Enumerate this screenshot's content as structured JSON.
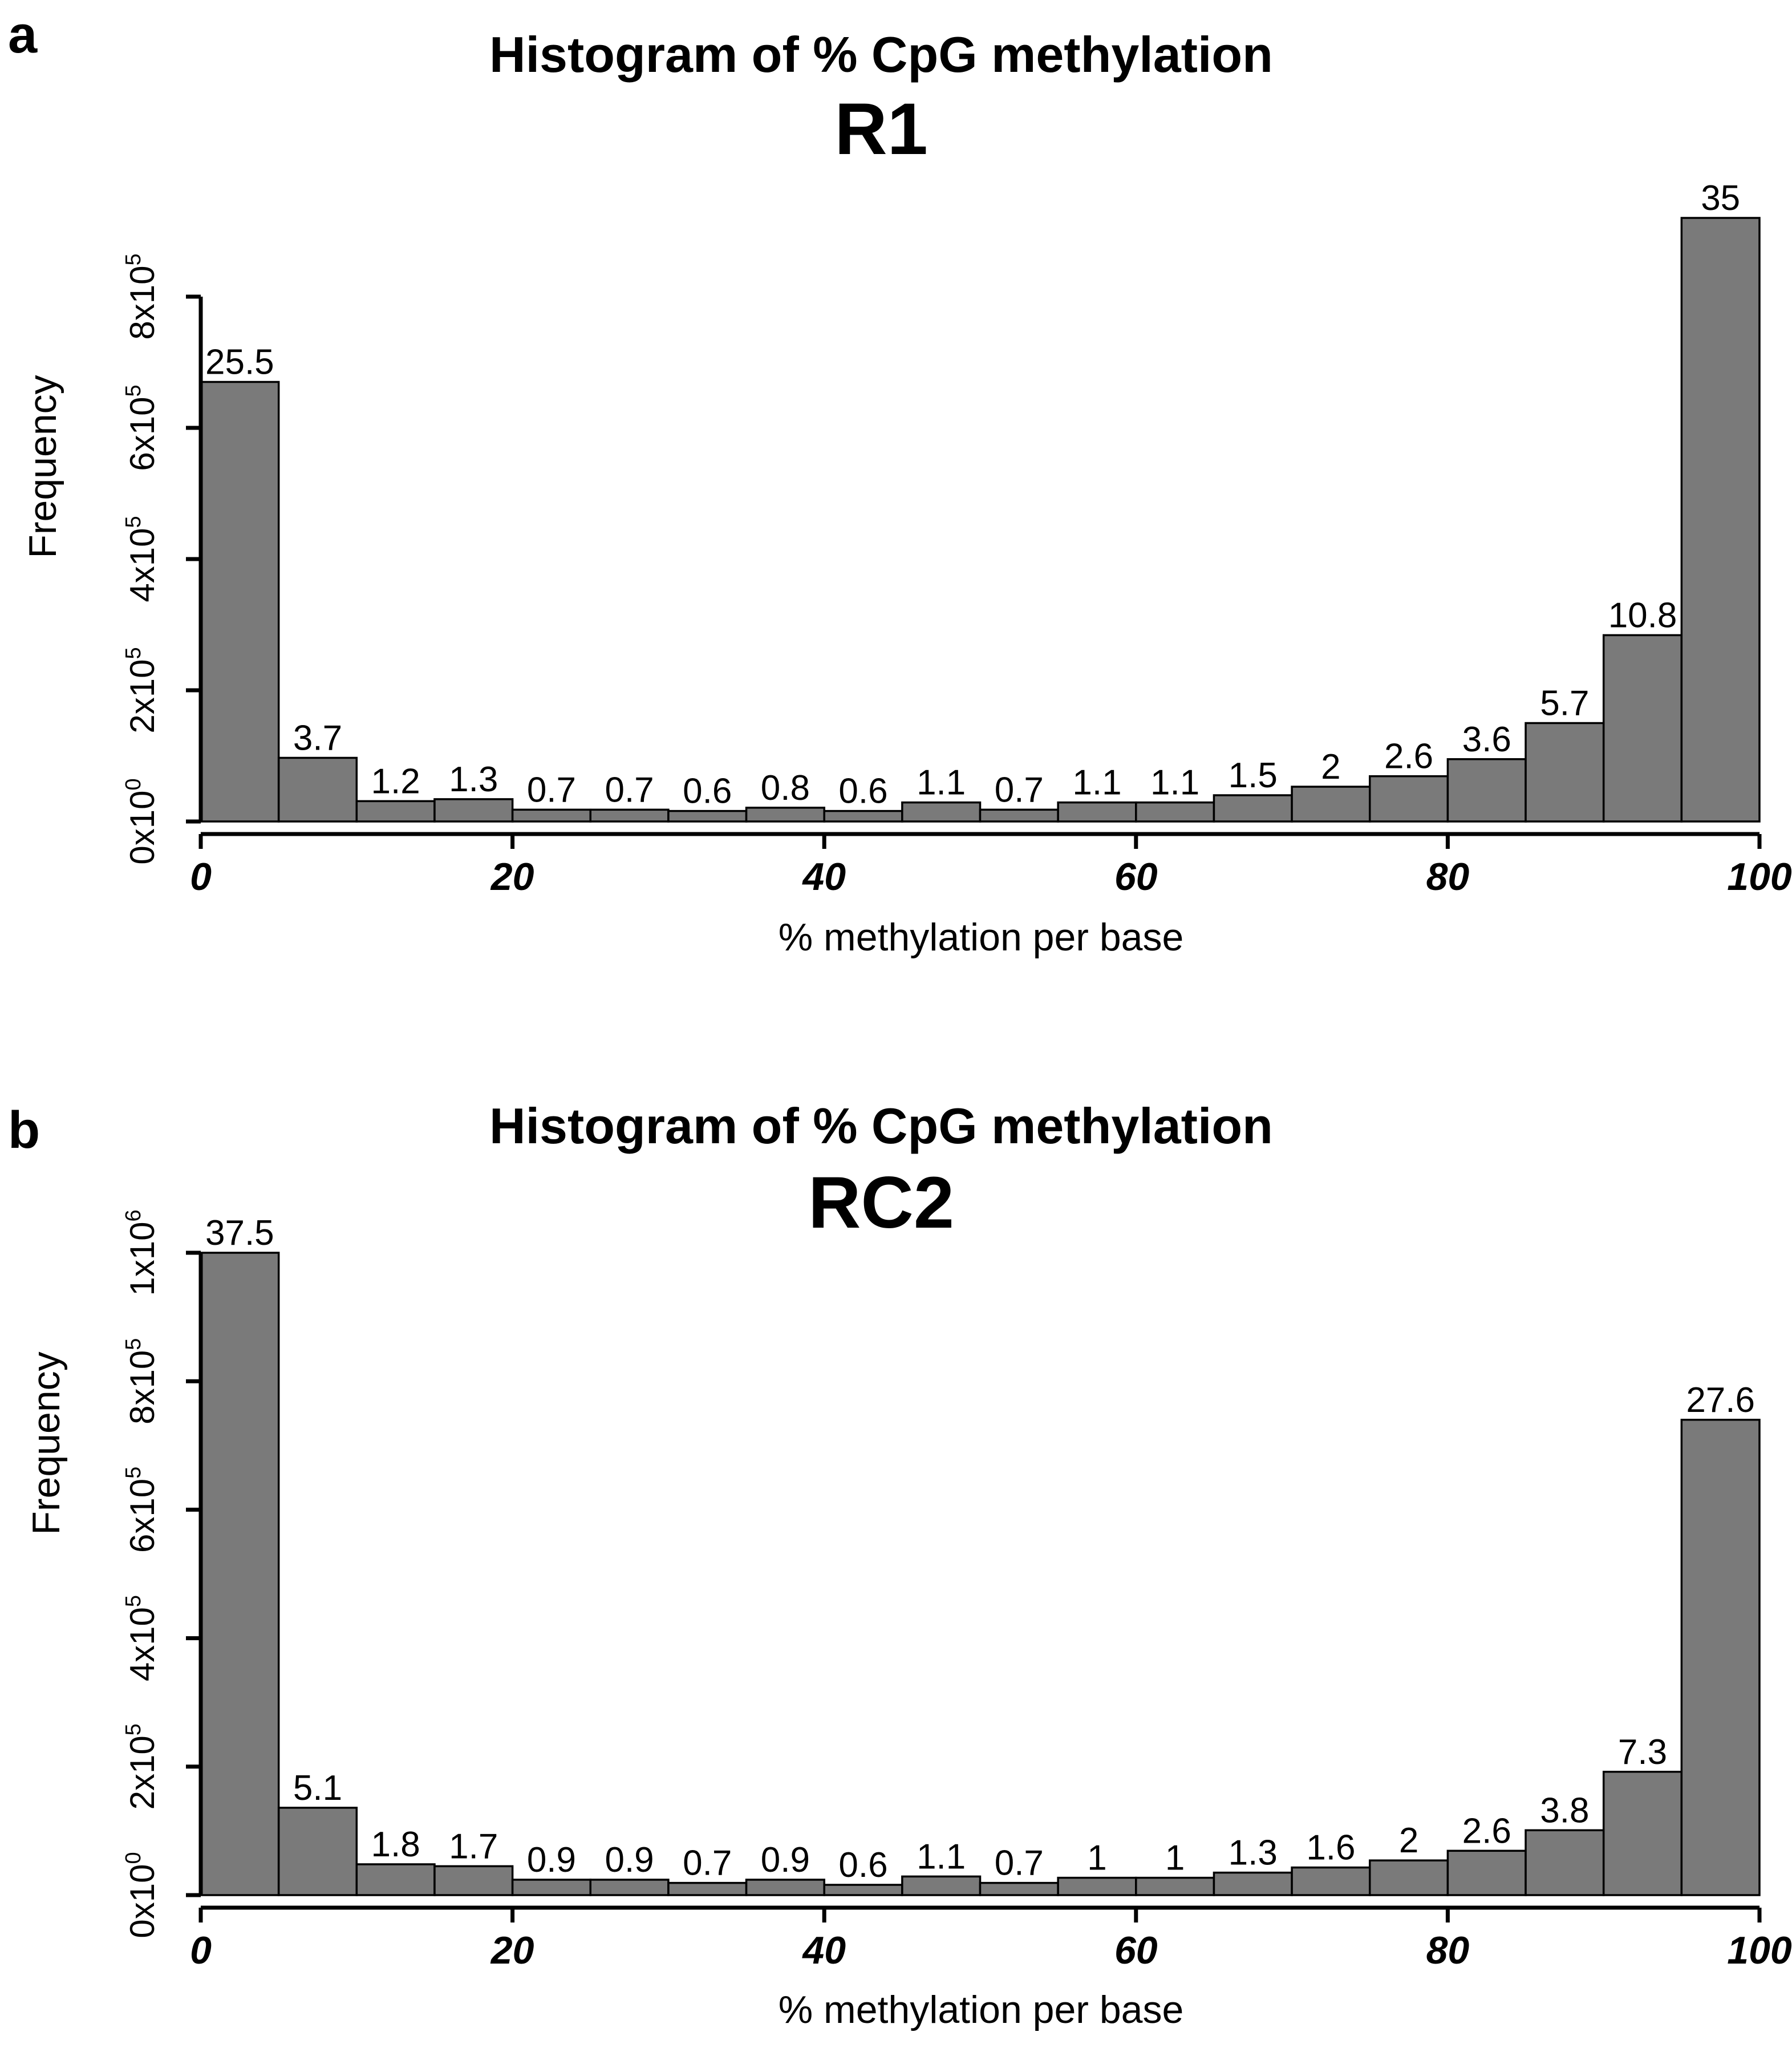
{
  "chart_data": [
    {
      "type": "bar",
      "panel_label": "a",
      "title": "Histogram of % CpG methylation",
      "subtitle": "R1",
      "xlabel": "% methylation per base",
      "ylabel": "Frequency",
      "xlim": [
        0,
        100
      ],
      "ylim": [
        0,
        800000
      ],
      "bin_width": 5,
      "x_ticks": [
        0,
        20,
        40,
        60,
        80,
        100
      ],
      "x_tick_labels": [
        "0",
        "20",
        "40",
        "60",
        "80",
        "100"
      ],
      "y_ticks": [
        {
          "value": 0,
          "base": "0x10",
          "exp": "0"
        },
        {
          "value": 200000,
          "base": "2x10",
          "exp": "5"
        },
        {
          "value": 400000,
          "base": "4x10",
          "exp": "5"
        },
        {
          "value": 600000,
          "base": "6x10",
          "exp": "5"
        },
        {
          "value": 800000,
          "base": "8x10",
          "exp": "5"
        }
      ],
      "bins": [
        0,
        5,
        10,
        15,
        20,
        25,
        30,
        35,
        40,
        45,
        50,
        55,
        60,
        65,
        70,
        75,
        80,
        85,
        90,
        95
      ],
      "values": [
        670000,
        97000,
        31000,
        34000,
        18000,
        18000,
        16000,
        21000,
        16000,
        29000,
        18000,
        29000,
        29000,
        40000,
        53000,
        69000,
        95000,
        150000,
        284000,
        920000
      ],
      "data_labels": [
        "25.5",
        "3.7",
        "1.2",
        "1.3",
        "0.7",
        "0.7",
        "0.6",
        "0.8",
        "0.6",
        "1.1",
        "0.7",
        "1.1",
        "1.1",
        "1.5",
        "2",
        "2.6",
        "3.6",
        "5.7",
        "10.8",
        "35"
      ],
      "grid": false,
      "legend": "none"
    },
    {
      "type": "bar",
      "panel_label": "b",
      "title": "Histogram of % CpG methylation",
      "subtitle": "RC2",
      "xlabel": "% methylation per base",
      "ylabel": "Frequency",
      "xlim": [
        0,
        100
      ],
      "ylim": [
        0,
        1000000
      ],
      "bin_width": 5,
      "x_ticks": [
        0,
        20,
        40,
        60,
        80,
        100
      ],
      "x_tick_labels": [
        "0",
        "20",
        "40",
        "60",
        "80",
        "100"
      ],
      "y_ticks": [
        {
          "value": 0,
          "base": "0x10",
          "exp": "0"
        },
        {
          "value": 200000,
          "base": "2x10",
          "exp": "5"
        },
        {
          "value": 400000,
          "base": "4x10",
          "exp": "5"
        },
        {
          "value": 600000,
          "base": "6x10",
          "exp": "5"
        },
        {
          "value": 800000,
          "base": "8x10",
          "exp": "5"
        },
        {
          "value": 1000000,
          "base": "1x10",
          "exp": "6"
        }
      ],
      "bins": [
        0,
        5,
        10,
        15,
        20,
        25,
        30,
        35,
        40,
        45,
        50,
        55,
        60,
        65,
        70,
        75,
        80,
        85,
        90,
        95
      ],
      "values": [
        1000000,
        136000,
        48000,
        45000,
        24000,
        24000,
        19000,
        24000,
        16000,
        29000,
        19000,
        27000,
        27000,
        35000,
        43000,
        54000,
        69000,
        101000,
        192000,
        740000
      ],
      "data_labels": [
        "37.5",
        "5.1",
        "1.8",
        "1.7",
        "0.9",
        "0.9",
        "0.7",
        "0.9",
        "0.6",
        "1.1",
        "0.7",
        "1",
        "1",
        "1.3",
        "1.6",
        "2",
        "2.6",
        "3.8",
        "7.3",
        "27.6"
      ],
      "grid": false,
      "legend": "none"
    }
  ]
}
